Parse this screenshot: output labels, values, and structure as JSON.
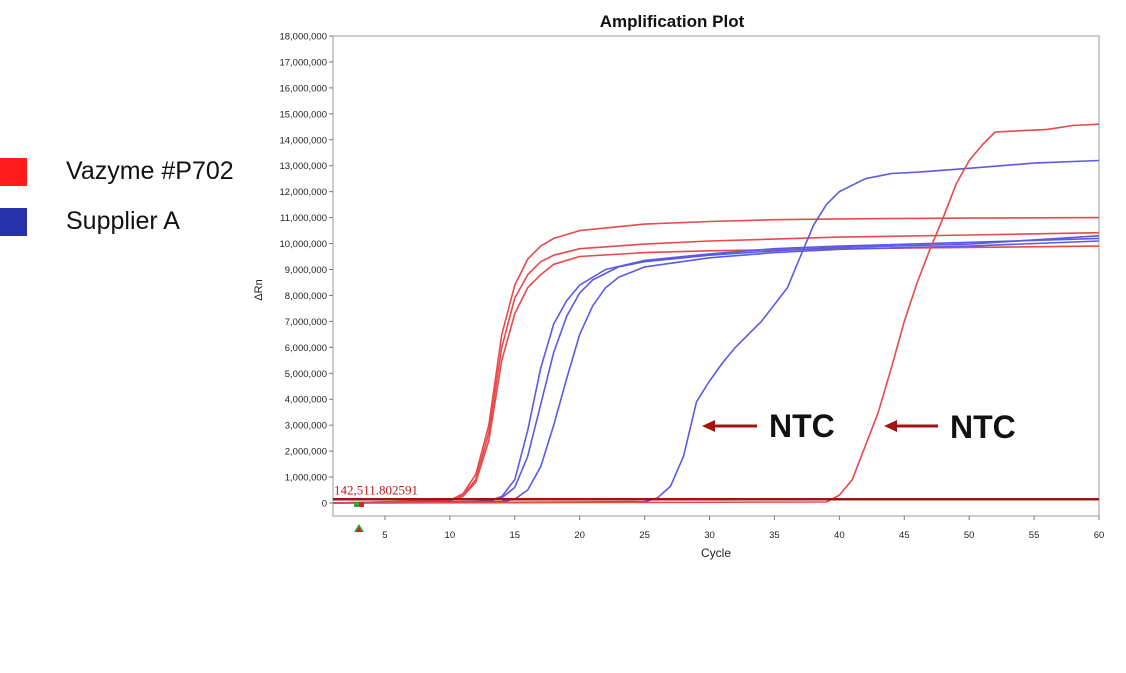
{
  "legend": {
    "items": [
      {
        "label": "Vazyme #P702",
        "color": "#ff1a1a"
      },
      {
        "label": "Supplier A",
        "color": "#2431a8"
      }
    ]
  },
  "annotations": {
    "ntc_left": "NTC",
    "ntc_right": "NTC",
    "arrow_color": "#a11414"
  },
  "chart_data": {
    "type": "line",
    "title": "Amplification Plot",
    "xlabel": "Cycle",
    "ylabel": "ΔRn",
    "xlim": [
      1,
      60
    ],
    "ylim": [
      0,
      18000000
    ],
    "x_ticks": [
      5,
      10,
      15,
      20,
      25,
      30,
      35,
      40,
      45,
      50,
      55,
      60
    ],
    "y_ticks": [
      0,
      1000000,
      2000000,
      3000000,
      4000000,
      5000000,
      6000000,
      7000000,
      8000000,
      9000000,
      10000000,
      11000000,
      12000000,
      13000000,
      14000000,
      15000000,
      16000000,
      17000000,
      18000000
    ],
    "y_tick_labels": [
      "0",
      "1,000,000",
      "2,000,000",
      "3,000,000",
      "4,000,000",
      "5,000,000",
      "6,000,000",
      "7,000,000",
      "8,000,000",
      "9,000,000",
      "10,000,000",
      "11,000,000",
      "12,000,000",
      "13,000,000",
      "14,000,000",
      "15,000,000",
      "16,000,000",
      "17,000,000",
      "18,000,000"
    ],
    "grid": true,
    "threshold": {
      "value": 142511.802591,
      "label": "142,511.802591",
      "color": "#a11414"
    },
    "series": [
      {
        "group": "Vazyme #P702",
        "color": "#e8494c",
        "points": [
          [
            1,
            0
          ],
          [
            10,
            100000
          ],
          [
            11,
            350000
          ],
          [
            12,
            1100000
          ],
          [
            13,
            3000000
          ],
          [
            14,
            6500000
          ],
          [
            15,
            8400000
          ],
          [
            16,
            9400000
          ],
          [
            17,
            9900000
          ],
          [
            18,
            10200000
          ],
          [
            20,
            10500000
          ],
          [
            25,
            10750000
          ],
          [
            30,
            10850000
          ],
          [
            35,
            10920000
          ],
          [
            40,
            10950000
          ],
          [
            50,
            10980000
          ],
          [
            60,
            11000000
          ]
        ]
      },
      {
        "group": "Vazyme #P702",
        "color": "#e8494c",
        "points": [
          [
            1,
            0
          ],
          [
            10,
            90000
          ],
          [
            11,
            300000
          ],
          [
            12,
            900000
          ],
          [
            13,
            2700000
          ],
          [
            14,
            6000000
          ],
          [
            15,
            7900000
          ],
          [
            16,
            8800000
          ],
          [
            17,
            9300000
          ],
          [
            18,
            9550000
          ],
          [
            20,
            9800000
          ],
          [
            25,
            9980000
          ],
          [
            30,
            10100000
          ],
          [
            40,
            10250000
          ],
          [
            50,
            10330000
          ],
          [
            60,
            10420000
          ]
        ]
      },
      {
        "group": "Vazyme #P702",
        "color": "#e8494c",
        "points": [
          [
            1,
            0
          ],
          [
            10,
            80000
          ],
          [
            11,
            250000
          ],
          [
            12,
            800000
          ],
          [
            13,
            2400000
          ],
          [
            14,
            5500000
          ],
          [
            15,
            7300000
          ],
          [
            16,
            8300000
          ],
          [
            17,
            8800000
          ],
          [
            18,
            9200000
          ],
          [
            20,
            9500000
          ],
          [
            25,
            9650000
          ],
          [
            30,
            9720000
          ],
          [
            40,
            9800000
          ],
          [
            50,
            9850000
          ],
          [
            60,
            9900000
          ]
        ]
      },
      {
        "group": "Supplier A",
        "color": "#5a5ae6",
        "points": [
          [
            1,
            0
          ],
          [
            12,
            50000
          ],
          [
            13,
            80000
          ],
          [
            14,
            250000
          ],
          [
            15,
            900000
          ],
          [
            16,
            2800000
          ],
          [
            17,
            5200000
          ],
          [
            18,
            6900000
          ],
          [
            19,
            7800000
          ],
          [
            20,
            8400000
          ],
          [
            22,
            9000000
          ],
          [
            25,
            9350000
          ],
          [
            30,
            9600000
          ],
          [
            35,
            9800000
          ],
          [
            40,
            9900000
          ],
          [
            50,
            10050000
          ],
          [
            60,
            10200000
          ]
        ]
      },
      {
        "group": "Supplier A",
        "color": "#5a5ae6",
        "points": [
          [
            1,
            0
          ],
          [
            13,
            60000
          ],
          [
            14,
            200000
          ],
          [
            15,
            600000
          ],
          [
            16,
            1800000
          ],
          [
            17,
            3800000
          ],
          [
            18,
            5800000
          ],
          [
            19,
            7200000
          ],
          [
            20,
            8100000
          ],
          [
            21,
            8600000
          ],
          [
            23,
            9100000
          ],
          [
            25,
            9300000
          ],
          [
            30,
            9550000
          ],
          [
            35,
            9720000
          ],
          [
            40,
            9850000
          ],
          [
            50,
            9980000
          ],
          [
            60,
            10300000
          ]
        ]
      },
      {
        "group": "Supplier A",
        "color": "#5a5ae6",
        "points": [
          [
            1,
            0
          ],
          [
            14,
            50000
          ],
          [
            15,
            150000
          ],
          [
            16,
            500000
          ],
          [
            17,
            1400000
          ],
          [
            18,
            3000000
          ],
          [
            19,
            4800000
          ],
          [
            20,
            6500000
          ],
          [
            21,
            7600000
          ],
          [
            22,
            8300000
          ],
          [
            23,
            8700000
          ],
          [
            25,
            9100000
          ],
          [
            30,
            9450000
          ],
          [
            35,
            9650000
          ],
          [
            40,
            9780000
          ],
          [
            50,
            9900000
          ],
          [
            60,
            10100000
          ]
        ]
      },
      {
        "group": "Supplier A",
        "color": "#5a5ae6",
        "points": [
          [
            1,
            0
          ],
          [
            25,
            50000
          ],
          [
            26,
            200000
          ],
          [
            27,
            650000
          ],
          [
            28,
            1800000
          ],
          [
            29,
            3900000
          ],
          [
            30,
            4700000
          ],
          [
            31,
            5400000
          ],
          [
            32,
            6000000
          ],
          [
            34,
            7000000
          ],
          [
            36,
            8300000
          ],
          [
            37,
            9500000
          ],
          [
            38,
            10700000
          ],
          [
            39,
            11500000
          ],
          [
            40,
            12000000
          ],
          [
            42,
            12500000
          ],
          [
            44,
            12700000
          ],
          [
            46,
            12750000
          ],
          [
            50,
            12900000
          ],
          [
            55,
            13100000
          ],
          [
            60,
            13200000
          ]
        ]
      },
      {
        "group": "Vazyme #P702",
        "color": "#e8494c",
        "points": [
          [
            1,
            0
          ],
          [
            39,
            40000
          ],
          [
            40,
            300000
          ],
          [
            41,
            900000
          ],
          [
            42,
            2200000
          ],
          [
            43,
            3500000
          ],
          [
            44,
            5200000
          ],
          [
            45,
            7000000
          ],
          [
            46,
            8500000
          ],
          [
            47,
            9800000
          ],
          [
            48,
            11000000
          ],
          [
            49,
            12300000
          ],
          [
            50,
            13200000
          ],
          [
            51,
            13800000
          ],
          [
            52,
            14300000
          ],
          [
            54,
            14350000
          ],
          [
            56,
            14400000
          ],
          [
            58,
            14550000
          ],
          [
            60,
            14600000
          ]
        ]
      }
    ]
  }
}
